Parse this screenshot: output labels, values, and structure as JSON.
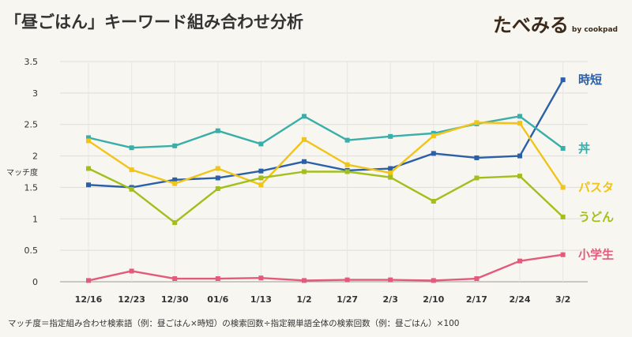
{
  "header": {
    "title": "「昼ごはん」キーワード組み合わせ分析",
    "brand": "たべみる",
    "brand_sub": "by cookpad"
  },
  "footnote": "マッチ度＝指定組み合わせ検索語（例：昼ごはん×時短）の検索回数÷指定親単語全体の検索回数（例：昼ごはん）×100",
  "chart_data": {
    "type": "line",
    "title": "「昼ごはん」キーワード組み合わせ分析",
    "xlabel": "",
    "ylabel": "マッチ度",
    "ylim": [
      0,
      3.5
    ],
    "yticks": [
      "0",
      "0.5",
      "1",
      "1.5",
      "2",
      "2.5",
      "3",
      "3.5"
    ],
    "grid": true,
    "categories": [
      "12/16",
      "12/23",
      "12/30",
      "01/6",
      "1/13",
      "1/2",
      "1/27",
      "2/3",
      "2/10",
      "2/17",
      "2/24",
      "3/2"
    ],
    "series": [
      {
        "name": "時短",
        "color": "#2b5fa8",
        "values": [
          1.54,
          1.5,
          1.62,
          1.65,
          1.76,
          1.91,
          1.77,
          1.8,
          2.04,
          1.97,
          2.0,
          3.21
        ]
      },
      {
        "name": "丼",
        "color": "#3aafa9",
        "values": [
          2.29,
          2.13,
          2.16,
          2.4,
          2.19,
          2.63,
          2.25,
          2.31,
          2.36,
          2.51,
          2.63,
          2.12
        ]
      },
      {
        "name": "パスタ",
        "color": "#f0c419",
        "values": [
          2.24,
          1.78,
          1.56,
          1.8,
          1.54,
          2.26,
          1.86,
          1.73,
          2.32,
          2.53,
          2.52,
          1.5
        ]
      },
      {
        "name": "うどん",
        "color": "#a2bf1c",
        "values": [
          1.8,
          1.47,
          0.94,
          1.48,
          1.65,
          1.75,
          1.75,
          1.66,
          1.28,
          1.65,
          1.68,
          1.03
        ]
      },
      {
        "name": "小学生",
        "color": "#e35a7a",
        "values": [
          0.02,
          0.17,
          0.05,
          0.05,
          0.06,
          0.02,
          0.03,
          0.03,
          0.02,
          0.05,
          0.33,
          0.43
        ]
      }
    ]
  }
}
